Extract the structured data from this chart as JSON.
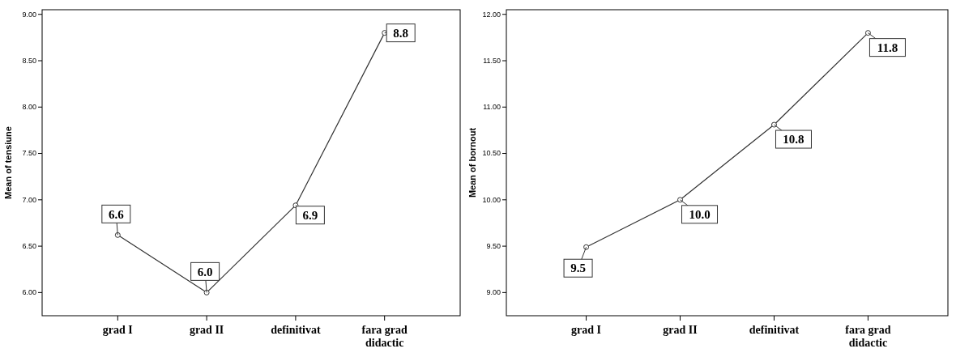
{
  "chart_data": [
    {
      "type": "line",
      "ylabel": "Mean of tensiune",
      "categories": [
        "grad I",
        "grad II",
        "definitivat",
        "fara grad didactic"
      ],
      "series": [
        {
          "color": "#333333",
          "values": [
            6.62,
            6.0,
            6.94,
            8.8
          ],
          "value_labels": [
            "6.6",
            "6.0",
            "6.9",
            "8.8"
          ]
        }
      ],
      "ylim": [
        5.75,
        9.05
      ],
      "yticks": [
        {
          "value": 6,
          "label": "6.00"
        },
        {
          "value": 6.5,
          "label": "6.50"
        },
        {
          "value": 7,
          "label": "7.00"
        },
        {
          "value": 7.5,
          "label": "7.50"
        },
        {
          "value": 8,
          "label": "8.00"
        },
        {
          "value": 8.5,
          "label": "8.50"
        },
        {
          "value": 9,
          "label": "9.00"
        }
      ],
      "marker": "circle",
      "grid": false
    },
    {
      "type": "line",
      "ylabel": "Mean of bornout",
      "categories": [
        "grad I",
        "grad II",
        "definitivat",
        "fara grad didactic"
      ],
      "series": [
        {
          "color": "#333333",
          "values": [
            9.49,
            10.0,
            10.81,
            11.8
          ],
          "value_labels": [
            "9.5",
            "10.0",
            "10.8",
            "11.8"
          ]
        }
      ],
      "ylim": [
        8.75,
        12.05
      ],
      "yticks": [
        {
          "value": 9,
          "label": "9.00"
        },
        {
          "value": 9.5,
          "label": "9.50"
        },
        {
          "value": 10,
          "label": "10.00"
        },
        {
          "value": 10.5,
          "label": "10.50"
        },
        {
          "value": 11,
          "label": "11.00"
        },
        {
          "value": 11.5,
          "label": "11.50"
        },
        {
          "value": 12,
          "label": "12.00"
        }
      ],
      "marker": "circle",
      "grid": false
    }
  ]
}
